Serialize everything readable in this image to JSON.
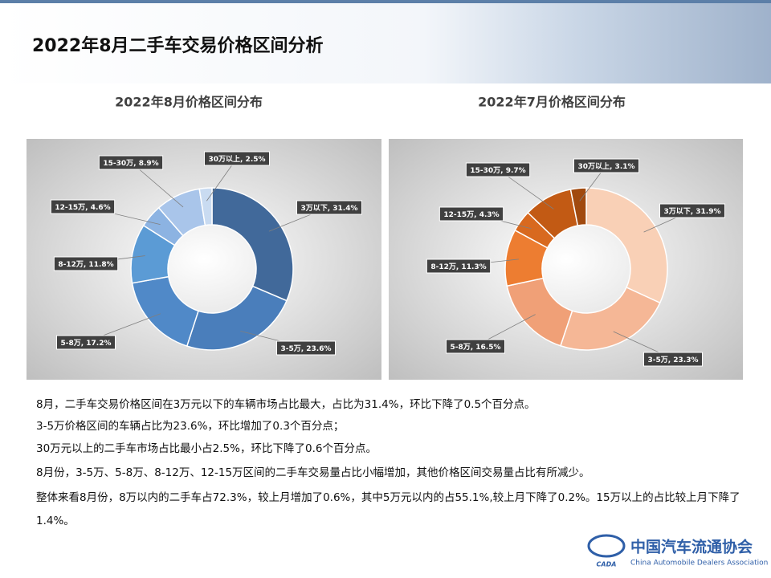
{
  "header": {
    "title": "2022年8月二手车交易价格区间分析"
  },
  "chart_data": [
    {
      "type": "donut",
      "title": "2022年8月价格区间分布",
      "categories": [
        "3万以下",
        "3-5万",
        "5-8万",
        "8-12万",
        "12-15万",
        "15-30万",
        "30万以上"
      ],
      "values": [
        31.4,
        23.6,
        17.2,
        11.8,
        4.6,
        8.9,
        2.5
      ],
      "value_labels": [
        ", 31.4%",
        ", 23.6%",
        ", 17.2%",
        ", 11.8%",
        ", 4.6%",
        ", 8.9%",
        ", 2.5%"
      ],
      "colors": [
        "#41699a",
        "#4a7ebb",
        "#5089c8",
        "#5b9bd5",
        "#8cb3e2",
        "#a9c5ea",
        "#c9dbf1"
      ]
    },
    {
      "type": "donut",
      "title": "2022年7月价格区间分布",
      "categories": [
        "3万以下",
        "3-5万",
        "5-8万",
        "8-12万",
        "12-15万",
        "15-30万",
        "30万以上"
      ],
      "values": [
        31.9,
        23.3,
        16.5,
        11.3,
        4.3,
        9.7,
        3.1
      ],
      "value_labels": [
        ", 31.9%",
        ", 23.3%",
        ", 16.5%",
        ", 11.3%",
        ", 4.3%",
        ", 9.7%",
        ", 3.1%"
      ],
      "colors": [
        "#f9d0b6",
        "#f5b796",
        "#f0a077",
        "#ed7d31",
        "#d8691f",
        "#c25a14",
        "#a14a0f"
      ]
    }
  ],
  "notes": [
    "8月，二手车交易价格区间在3万元以下的车辆市场占比最大，占比为31.4%，环比下降了0.5个百分点。",
    "3-5万价格区间的车辆占比为23.6%，环比增加了0.3个百分点；",
    "30万元以上的二手车市场占比最小占2.5%，环比下降了0.6个百分点。",
    "8月份，3-5万、5-8万、8-12万、12-15万区间的二手车交易量占比小幅增加，其他价格区间交易量占比有所减少。",
    "整体来看8月份，8万以内的二手车占72.3%，较上月增加了0.6%，其中5万元以内的占55.1%,较上月下降了0.2%。15万以上的占比较上月下降了1.4%。"
  ],
  "logo": {
    "name": "中国汽车流通协会",
    "english": "China Automobile Dealers Association",
    "mark": "CADA"
  }
}
